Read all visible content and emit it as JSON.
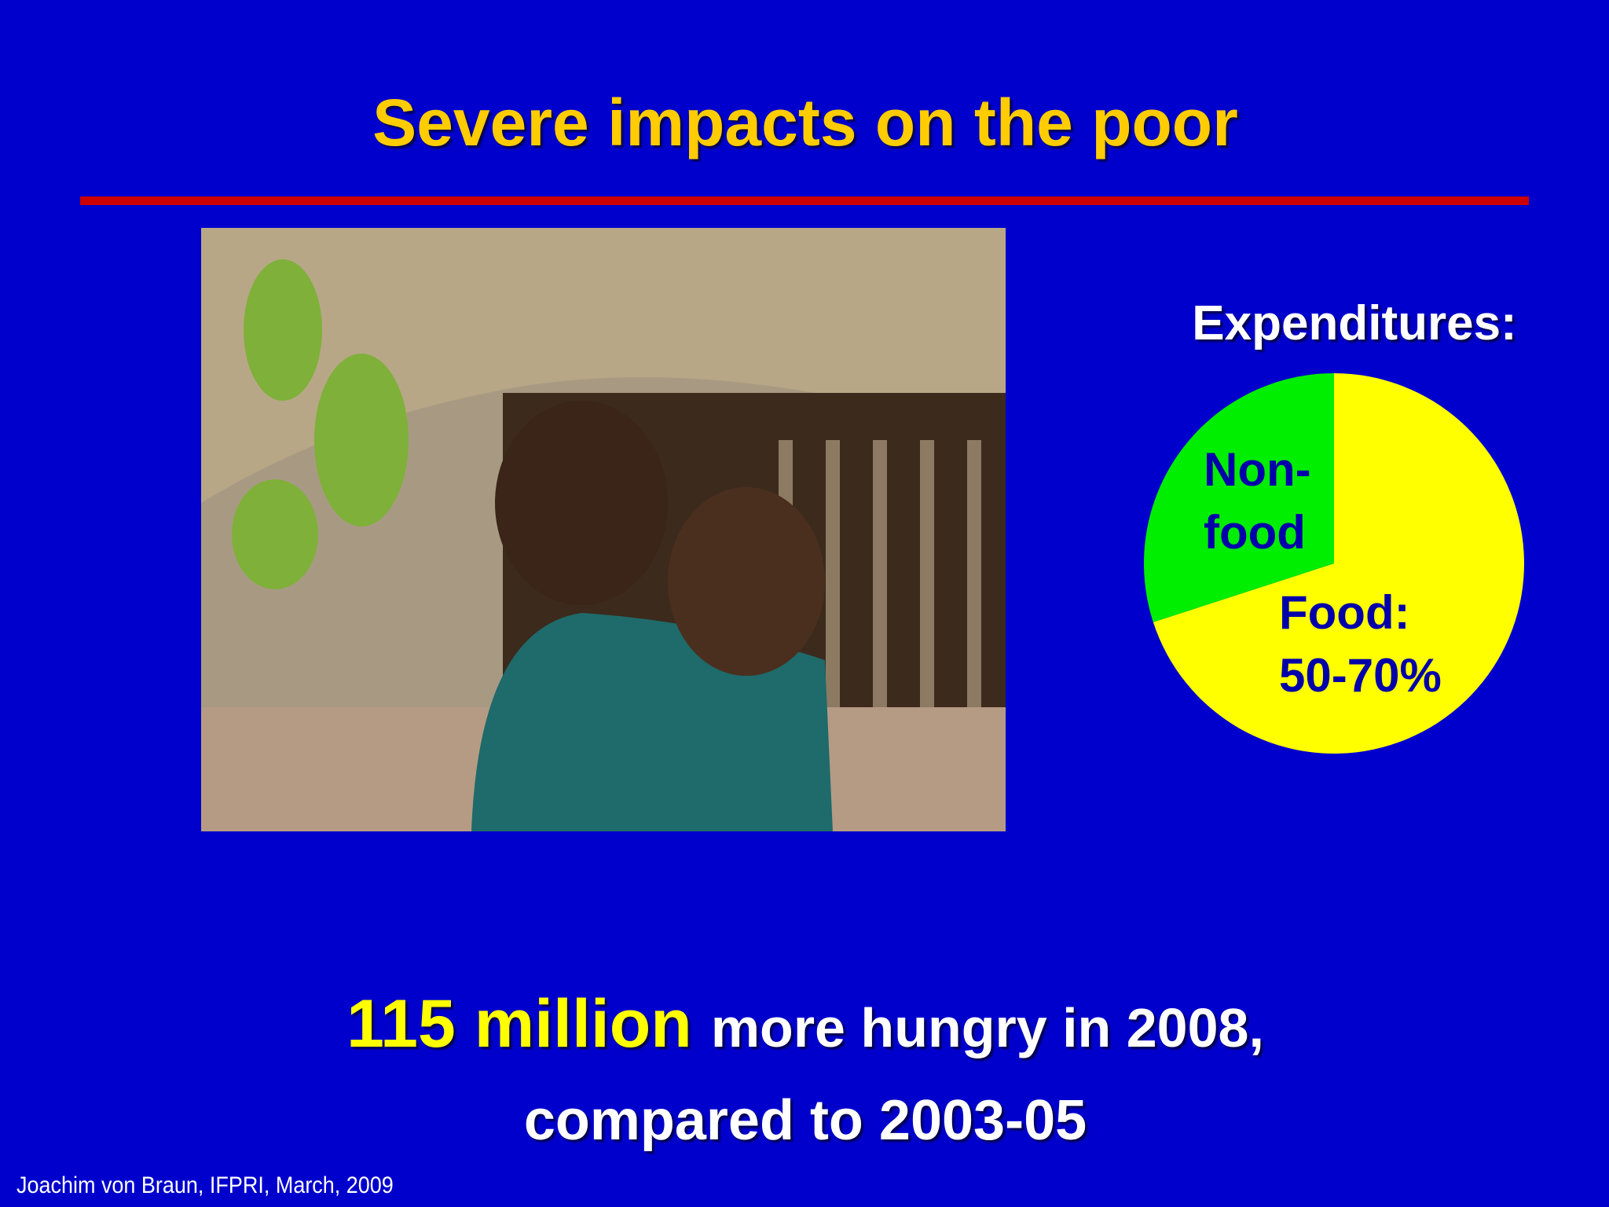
{
  "title": "Severe impacts on the poor",
  "chart_data": {
    "type": "pie",
    "title": "Expenditures:",
    "categories": [
      [
        "Food:",
        "50-70%"
      ],
      [
        "Non-",
        "food"
      ]
    ],
    "values": [
      70,
      30
    ],
    "colors": [
      "#ffff00",
      "#00ee00"
    ]
  },
  "headline": {
    "highlight": "115 million",
    "rest": "more hungry in 2008,",
    "line2": "compared to 2003-05"
  },
  "footer": "Joachim von Braun, IFPRI, March, 2009"
}
